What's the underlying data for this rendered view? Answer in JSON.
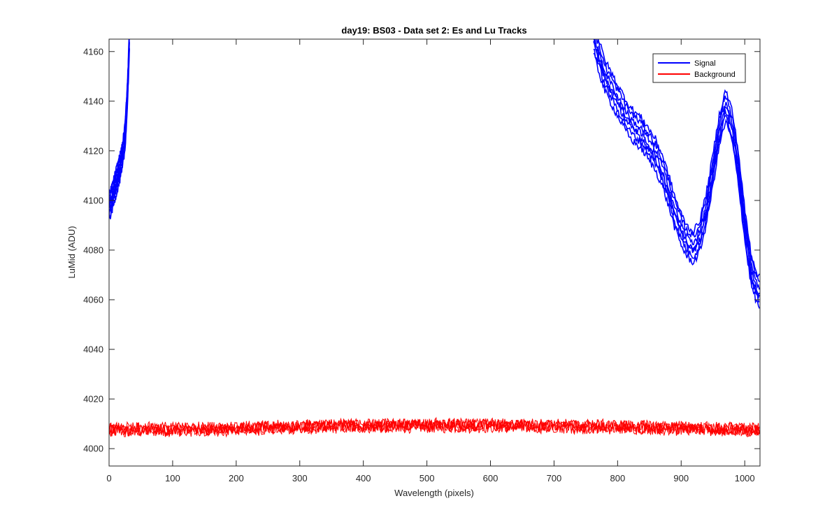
{
  "chart_data": {
    "type": "line",
    "title": "day19: BS03 - Data set 2: Es and Lu Tracks",
    "xlabel": "Wavelength (pixels)",
    "ylabel": "LuMid (ADU)",
    "xlim": [
      0,
      1024
    ],
    "ylim": [
      3993,
      4165
    ],
    "x_ticks": [
      0,
      100,
      200,
      300,
      400,
      500,
      600,
      700,
      800,
      900,
      1000
    ],
    "y_ticks": [
      4000,
      4020,
      4040,
      4060,
      4080,
      4100,
      4120,
      4140,
      4160
    ],
    "grid": false,
    "legend_position": "top-right",
    "legend": [
      "Signal",
      "Background"
    ],
    "colors": {
      "signal": "#0000ff",
      "background": "#ff0000"
    },
    "series": [
      {
        "name": "Signal",
        "color": "#0000ff",
        "segments": [
          {
            "x": [
              0,
              5,
              10,
              15,
              20,
              25,
              28,
              30,
              32
            ],
            "y": [
              4097,
              4101,
              4106,
              4111,
              4116,
              4125,
              4138,
              4150,
              4165
            ]
          },
          {
            "x": [
              762,
              780,
              800,
              820,
              840,
              860,
              870,
              880,
              890,
              900,
              910,
              920,
              930,
              940,
              950,
              960,
              970,
              980,
              990,
              1000,
              1010,
              1020,
              1024
            ],
            "y": [
              4165,
              4150,
              4140,
              4131,
              4126,
              4118,
              4112,
              4104,
              4095,
              4088,
              4083,
              4081,
              4086,
              4097,
              4112,
              4128,
              4138,
              4130,
              4113,
              4090,
              4072,
              4064,
              4062
            ]
          }
        ]
      },
      {
        "name": "Background",
        "color": "#ff0000",
        "x": [
          0,
          100,
          200,
          300,
          400,
          500,
          600,
          700,
          800,
          900,
          1000,
          1024
        ],
        "y": [
          4007.5,
          4007.8,
          4008.0,
          4008.8,
          4009.2,
          4009.3,
          4009.3,
          4009.1,
          4008.7,
          4008.2,
          4007.6,
          4007.3
        ],
        "noise_amplitude": 2.5
      }
    ]
  }
}
